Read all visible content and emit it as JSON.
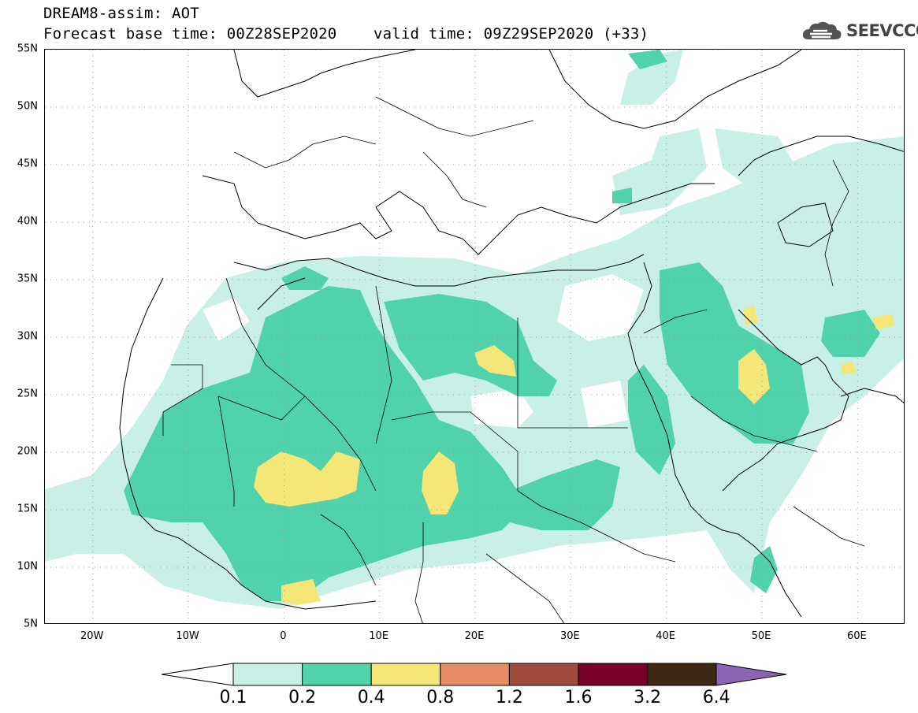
{
  "title": {
    "line1": "DREAM8-assim: AOT",
    "line2": "Forecast base time: 00Z28SEP2020    valid time: 09Z29SEP2020 (+33)"
  },
  "logo": {
    "text": "SEEVCCC",
    "icon": "cloud-icon"
  },
  "map": {
    "lat_ticks": [
      "55N",
      "50N",
      "45N",
      "40N",
      "35N",
      "30N",
      "25N",
      "20N",
      "15N",
      "10N",
      "5N"
    ],
    "lon_ticks": [
      "20W",
      "10W",
      "0",
      "10E",
      "20E",
      "30E",
      "40E",
      "50E",
      "60E"
    ],
    "lon_range": [
      -25,
      65
    ],
    "lat_range": [
      5,
      55
    ],
    "grid": true
  },
  "colorbar": {
    "labels": [
      "0.1",
      "0.2",
      "0.4",
      "0.8",
      "1.2",
      "1.6",
      "3.2",
      "6.4"
    ],
    "colors": [
      "#ffffff",
      "#c8f0e6",
      "#50d2aa",
      "#f5e678",
      "#e68c64",
      "#a04b3c",
      "#780028",
      "#3c2814",
      "#8c64b4"
    ]
  }
}
